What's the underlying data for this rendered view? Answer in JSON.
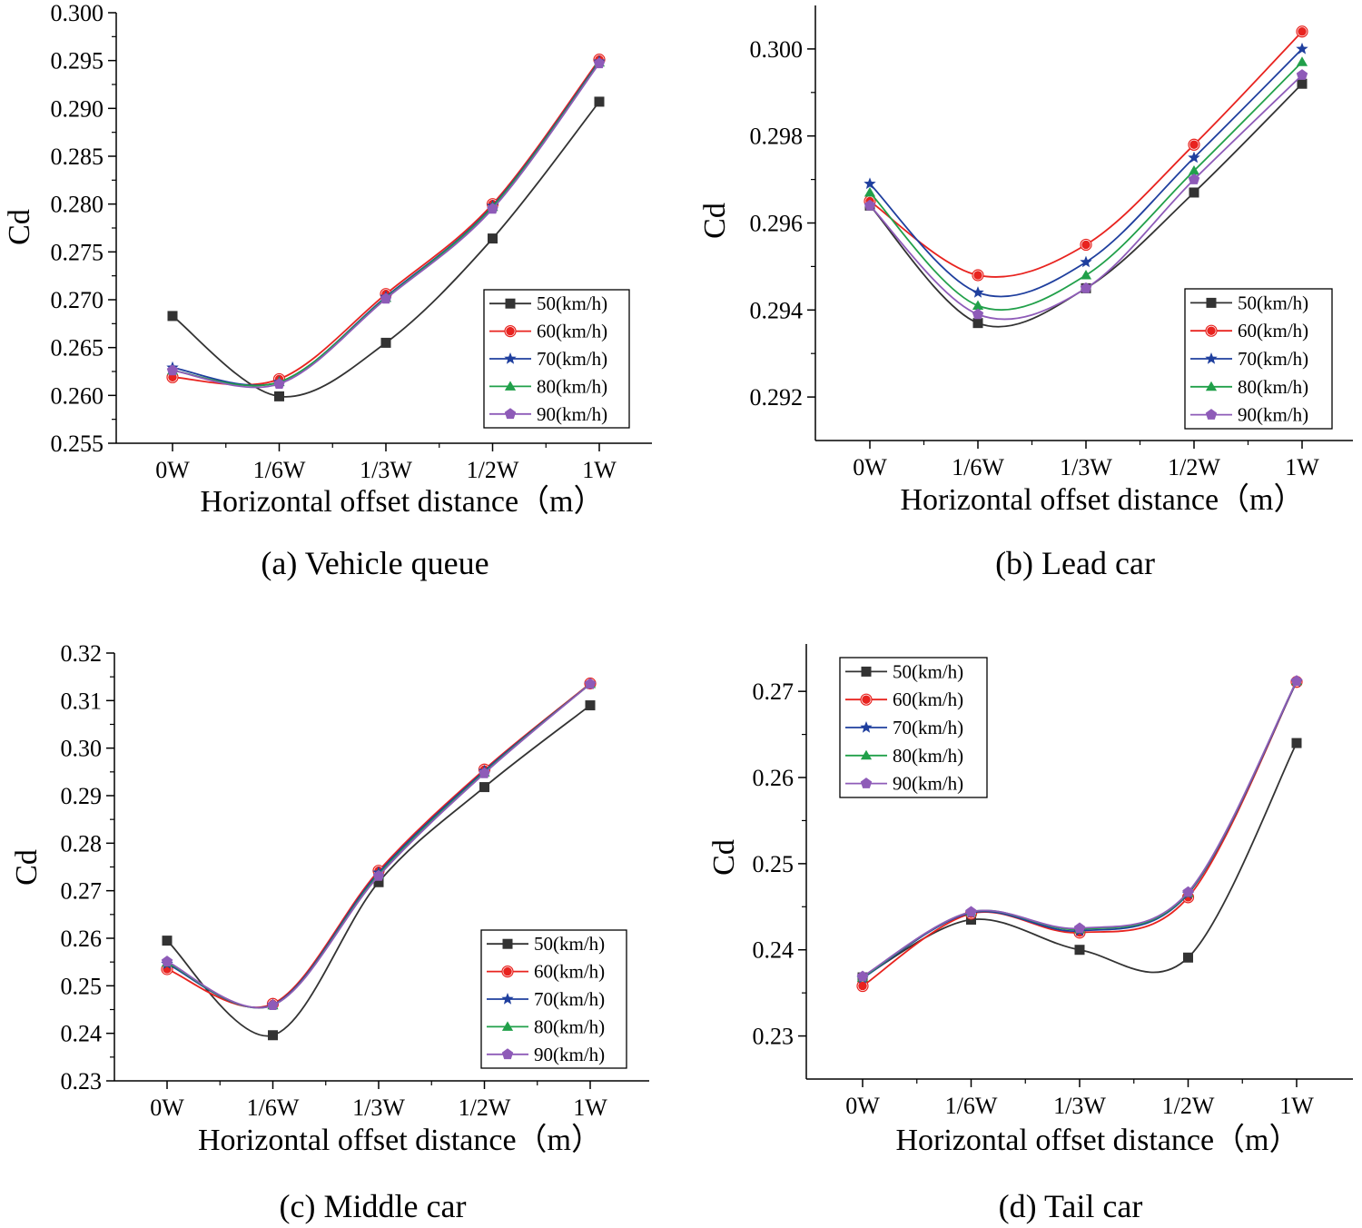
{
  "colors": {
    "s50": "#333333",
    "s60": "#e8231f",
    "s70": "#1f3f9e",
    "s80": "#21a04a",
    "s90": "#8e5bb8"
  },
  "chart_data": [
    {
      "id": "a",
      "type": "line",
      "caption": "(a) Vehicle queue",
      "xlabel": "Horizontal offset distance（m）",
      "ylabel": "Cd",
      "categories": [
        "0W",
        "1/6W",
        "1/3W",
        "1/2W",
        "1W"
      ],
      "ylim": [
        0.255,
        0.3
      ],
      "yticks": [
        0.255,
        0.26,
        0.265,
        0.27,
        0.275,
        0.28,
        0.285,
        0.29,
        0.295,
        0.3
      ],
      "ytick_labels": [
        "0.255",
        "0.260",
        "0.265",
        "0.270",
        "0.275",
        "0.280",
        "0.285",
        "0.290",
        "0.295",
        "0.300"
      ],
      "legend_position": "bottom-right",
      "series": [
        {
          "name": "50(km/h)",
          "marker": "square",
          "values": [
            0.2683,
            0.2599,
            0.2655,
            0.2764,
            0.2907
          ]
        },
        {
          "name": "60(km/h)",
          "marker": "circle",
          "values": [
            0.2619,
            0.2617,
            0.2706,
            0.28,
            0.2951
          ]
        },
        {
          "name": "70(km/h)",
          "marker": "star",
          "values": [
            0.2629,
            0.2614,
            0.2703,
            0.2798,
            0.2949
          ]
        },
        {
          "name": "80(km/h)",
          "marker": "triangle",
          "values": [
            0.2626,
            0.2614,
            0.2702,
            0.2797,
            0.2948
          ]
        },
        {
          "name": "90(km/h)",
          "marker": "pentagon",
          "values": [
            0.2626,
            0.2612,
            0.2701,
            0.2795,
            0.2947
          ]
        }
      ]
    },
    {
      "id": "b",
      "type": "line",
      "caption": "(b) Lead car",
      "xlabel": "Horizontal offset distance（m）",
      "ylabel": "Cd",
      "categories": [
        "0W",
        "1/6W",
        "1/3W",
        "1/2W",
        "1W"
      ],
      "ylim": [
        0.291,
        0.301
      ],
      "yticks": [
        0.292,
        0.294,
        0.296,
        0.298,
        0.3
      ],
      "ytick_labels": [
        "0.292",
        "0.294",
        "0.296",
        "0.298",
        "0.300"
      ],
      "legend_position": "bottom-right",
      "series": [
        {
          "name": "50(km/h)",
          "marker": "square",
          "values": [
            0.2964,
            0.2937,
            0.2945,
            0.2967,
            0.2992
          ]
        },
        {
          "name": "60(km/h)",
          "marker": "circle",
          "values": [
            0.2965,
            0.2948,
            0.2955,
            0.2978,
            0.3004
          ]
        },
        {
          "name": "70(km/h)",
          "marker": "star",
          "values": [
            0.2969,
            0.2944,
            0.2951,
            0.2975,
            0.3
          ]
        },
        {
          "name": "80(km/h)",
          "marker": "triangle",
          "values": [
            0.2967,
            0.2941,
            0.2948,
            0.2972,
            0.2997
          ]
        },
        {
          "name": "90(km/h)",
          "marker": "pentagon",
          "values": [
            0.2964,
            0.2939,
            0.2945,
            0.297,
            0.2994
          ]
        }
      ]
    },
    {
      "id": "c",
      "type": "line",
      "caption": "(c) Middle car",
      "xlabel": "Horizontal offset distance（m）",
      "ylabel": "Cd",
      "categories": [
        "0W",
        "1/6W",
        "1/3W",
        "1/2W",
        "1W"
      ],
      "ylim": [
        0.23,
        0.32
      ],
      "yticks": [
        0.23,
        0.24,
        0.25,
        0.26,
        0.27,
        0.28,
        0.29,
        0.3,
        0.31,
        0.32
      ],
      "ytick_labels": [
        "0.23",
        "0.24",
        "0.25",
        "0.26",
        "0.27",
        "0.28",
        "0.29",
        "0.30",
        "0.31",
        "0.32"
      ],
      "legend_position": "bottom-right",
      "series": [
        {
          "name": "50(km/h)",
          "marker": "square",
          "values": [
            0.2595,
            0.2396,
            0.2718,
            0.2918,
            0.309
          ]
        },
        {
          "name": "60(km/h)",
          "marker": "circle",
          "values": [
            0.2535,
            0.2462,
            0.2742,
            0.2955,
            0.3136
          ]
        },
        {
          "name": "70(km/h)",
          "marker": "star",
          "values": [
            0.2546,
            0.246,
            0.2738,
            0.2952,
            0.3135
          ]
        },
        {
          "name": "80(km/h)",
          "marker": "triangle",
          "values": [
            0.2549,
            0.2459,
            0.2734,
            0.2949,
            0.3135
          ]
        },
        {
          "name": "90(km/h)",
          "marker": "pentagon",
          "values": [
            0.2551,
            0.2459,
            0.2731,
            0.2947,
            0.3135
          ]
        }
      ]
    },
    {
      "id": "d",
      "type": "line",
      "caption": "(d) Tail car",
      "xlabel": "Horizontal offset distance（m）",
      "ylabel": "Cd",
      "categories": [
        "0W",
        "1/6W",
        "1/3W",
        "1/2W",
        "1W"
      ],
      "ylim": [
        0.225,
        0.2755
      ],
      "yticks": [
        0.23,
        0.24,
        0.25,
        0.26,
        0.27
      ],
      "ytick_labels": [
        "0.23",
        "0.24",
        "0.25",
        "0.26",
        "0.27"
      ],
      "legend_position": "top-left",
      "series": [
        {
          "name": "50(km/h)",
          "marker": "square",
          "values": [
            0.2368,
            0.2435,
            0.24,
            0.2391,
            0.264
          ]
        },
        {
          "name": "60(km/h)",
          "marker": "circle",
          "values": [
            0.2358,
            0.2442,
            0.242,
            0.2461,
            0.2711
          ]
        },
        {
          "name": "70(km/h)",
          "marker": "star",
          "values": [
            0.2367,
            0.2443,
            0.2422,
            0.2465,
            0.2711
          ]
        },
        {
          "name": "80(km/h)",
          "marker": "triangle",
          "values": [
            0.2368,
            0.2444,
            0.2424,
            0.2466,
            0.2712
          ]
        },
        {
          "name": "90(km/h)",
          "marker": "pentagon",
          "values": [
            0.2369,
            0.2444,
            0.2425,
            0.2467,
            0.2712
          ]
        }
      ]
    }
  ]
}
